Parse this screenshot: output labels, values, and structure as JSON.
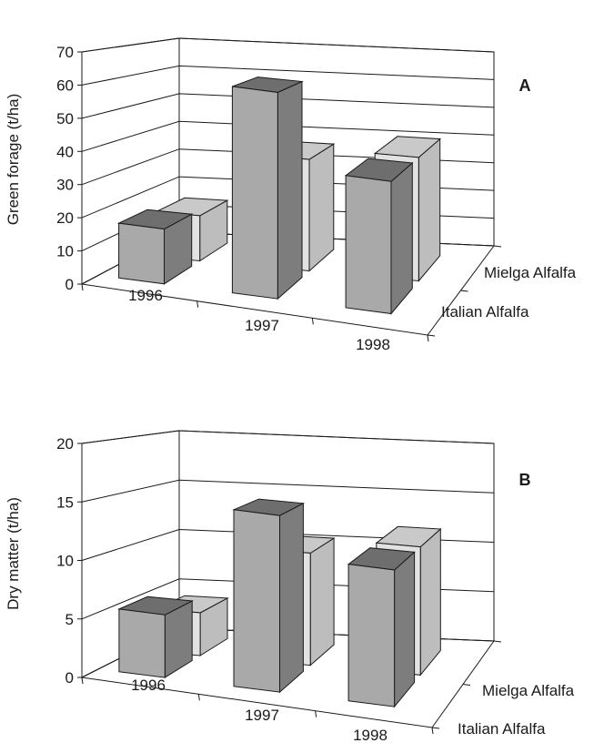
{
  "figure": {
    "panels": [
      {
        "letter": "A"
      },
      {
        "letter": "B"
      }
    ]
  },
  "colors": {
    "italian_front": "#a9a9a9",
    "italian_top": "#6e6e6e",
    "italian_side": "#7d7d7d",
    "mielga_front": "#e2e2e2",
    "mielga_top": "#c9c9c9",
    "mielga_side": "#bdbdbd",
    "lines": "#1a1a1a",
    "background": "#ffffff"
  },
  "chart_data": [
    {
      "type": "bar",
      "subtype": "3d-clustered",
      "panel_label": "A",
      "title": "",
      "ylabel": "Green forage (t/ha)",
      "xlabel": "",
      "categories": [
        "1996",
        "1997",
        "1998"
      ],
      "series": [
        {
          "name": "Italian Alfalfa",
          "values": [
            17,
            64,
            41
          ]
        },
        {
          "name": "Mielga Alfalfa",
          "values": [
            15,
            37,
            41
          ]
        }
      ],
      "ylim": [
        0,
        70
      ],
      "yticks": [
        0,
        10,
        20,
        30,
        40,
        50,
        60,
        70
      ],
      "grid": true,
      "legend": "depth-axis labels, right"
    },
    {
      "type": "bar",
      "subtype": "3d-clustered",
      "panel_label": "B",
      "title": "",
      "ylabel": "Dry matter (t/ha)",
      "xlabel": "",
      "categories": [
        "1996",
        "1997",
        "1998"
      ],
      "series": [
        {
          "name": "Italian Alfalfa",
          "values": [
            5.5,
            15.5,
            12
          ]
        },
        {
          "name": "Mielga Alfalfa",
          "values": [
            4,
            10.5,
            12
          ]
        }
      ],
      "ylim": [
        0,
        20
      ],
      "yticks": [
        0,
        5,
        10,
        15,
        20
      ],
      "grid": true,
      "legend": "depth-axis labels, right"
    }
  ]
}
